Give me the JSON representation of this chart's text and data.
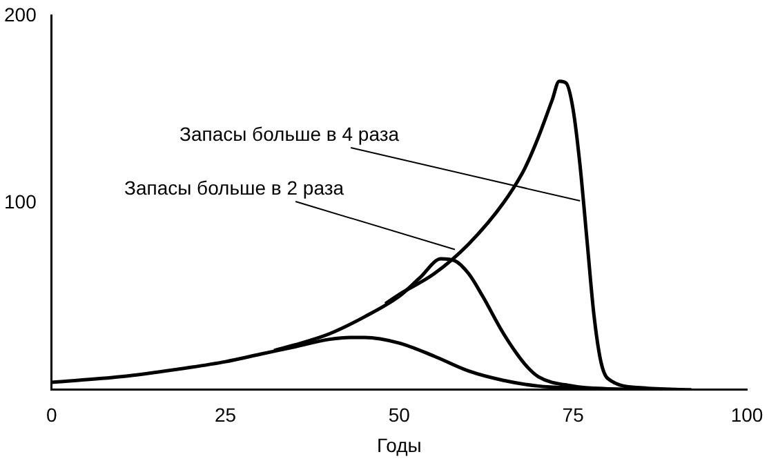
{
  "chart_data": {
    "type": "line",
    "xlabel": "Годы",
    "xlim": [
      0,
      100
    ],
    "ylim": [
      0,
      200
    ],
    "xticks": [
      0,
      25,
      50,
      75,
      100
    ],
    "yticks": [
      100,
      200
    ],
    "grid": false,
    "legend": false,
    "marker": "none",
    "line_style": "solid",
    "series": [
      {
        "color": "#000000",
        "x": [
          0,
          10,
          20,
          25,
          30,
          35,
          40,
          43,
          45,
          50,
          55,
          60,
          65,
          70,
          75,
          85
        ],
        "values": [
          4,
          7,
          12,
          15,
          19,
          23,
          27,
          28,
          28,
          25,
          18,
          10,
          5,
          2,
          1,
          0
        ]
      },
      {
        "color": "#000000",
        "x": [
          32,
          35,
          40,
          45,
          50,
          53,
          56,
          58,
          60,
          62,
          65,
          68,
          70,
          75,
          80,
          88
        ],
        "values": [
          21,
          24,
          30,
          39,
          50,
          60,
          70,
          69,
          62,
          50,
          30,
          14,
          7,
          2,
          0.5,
          0
        ]
      },
      {
        "color": "#000000",
        "x": [
          48,
          50,
          55,
          60,
          65,
          68,
          70,
          72,
          73,
          74,
          75,
          76,
          77,
          78,
          79,
          80,
          85,
          92
        ],
        "values": [
          46,
          51,
          62,
          78,
          100,
          118,
          135,
          155,
          165,
          164,
          150,
          120,
          80,
          40,
          15,
          6,
          1,
          0
        ]
      }
    ],
    "annotations": [
      {
        "text": "Запасы больше в 4 раза",
        "x": 76,
        "y": 101
      },
      {
        "text": "Запасы больше в 2 раза",
        "x": 58,
        "y": 75
      }
    ]
  }
}
